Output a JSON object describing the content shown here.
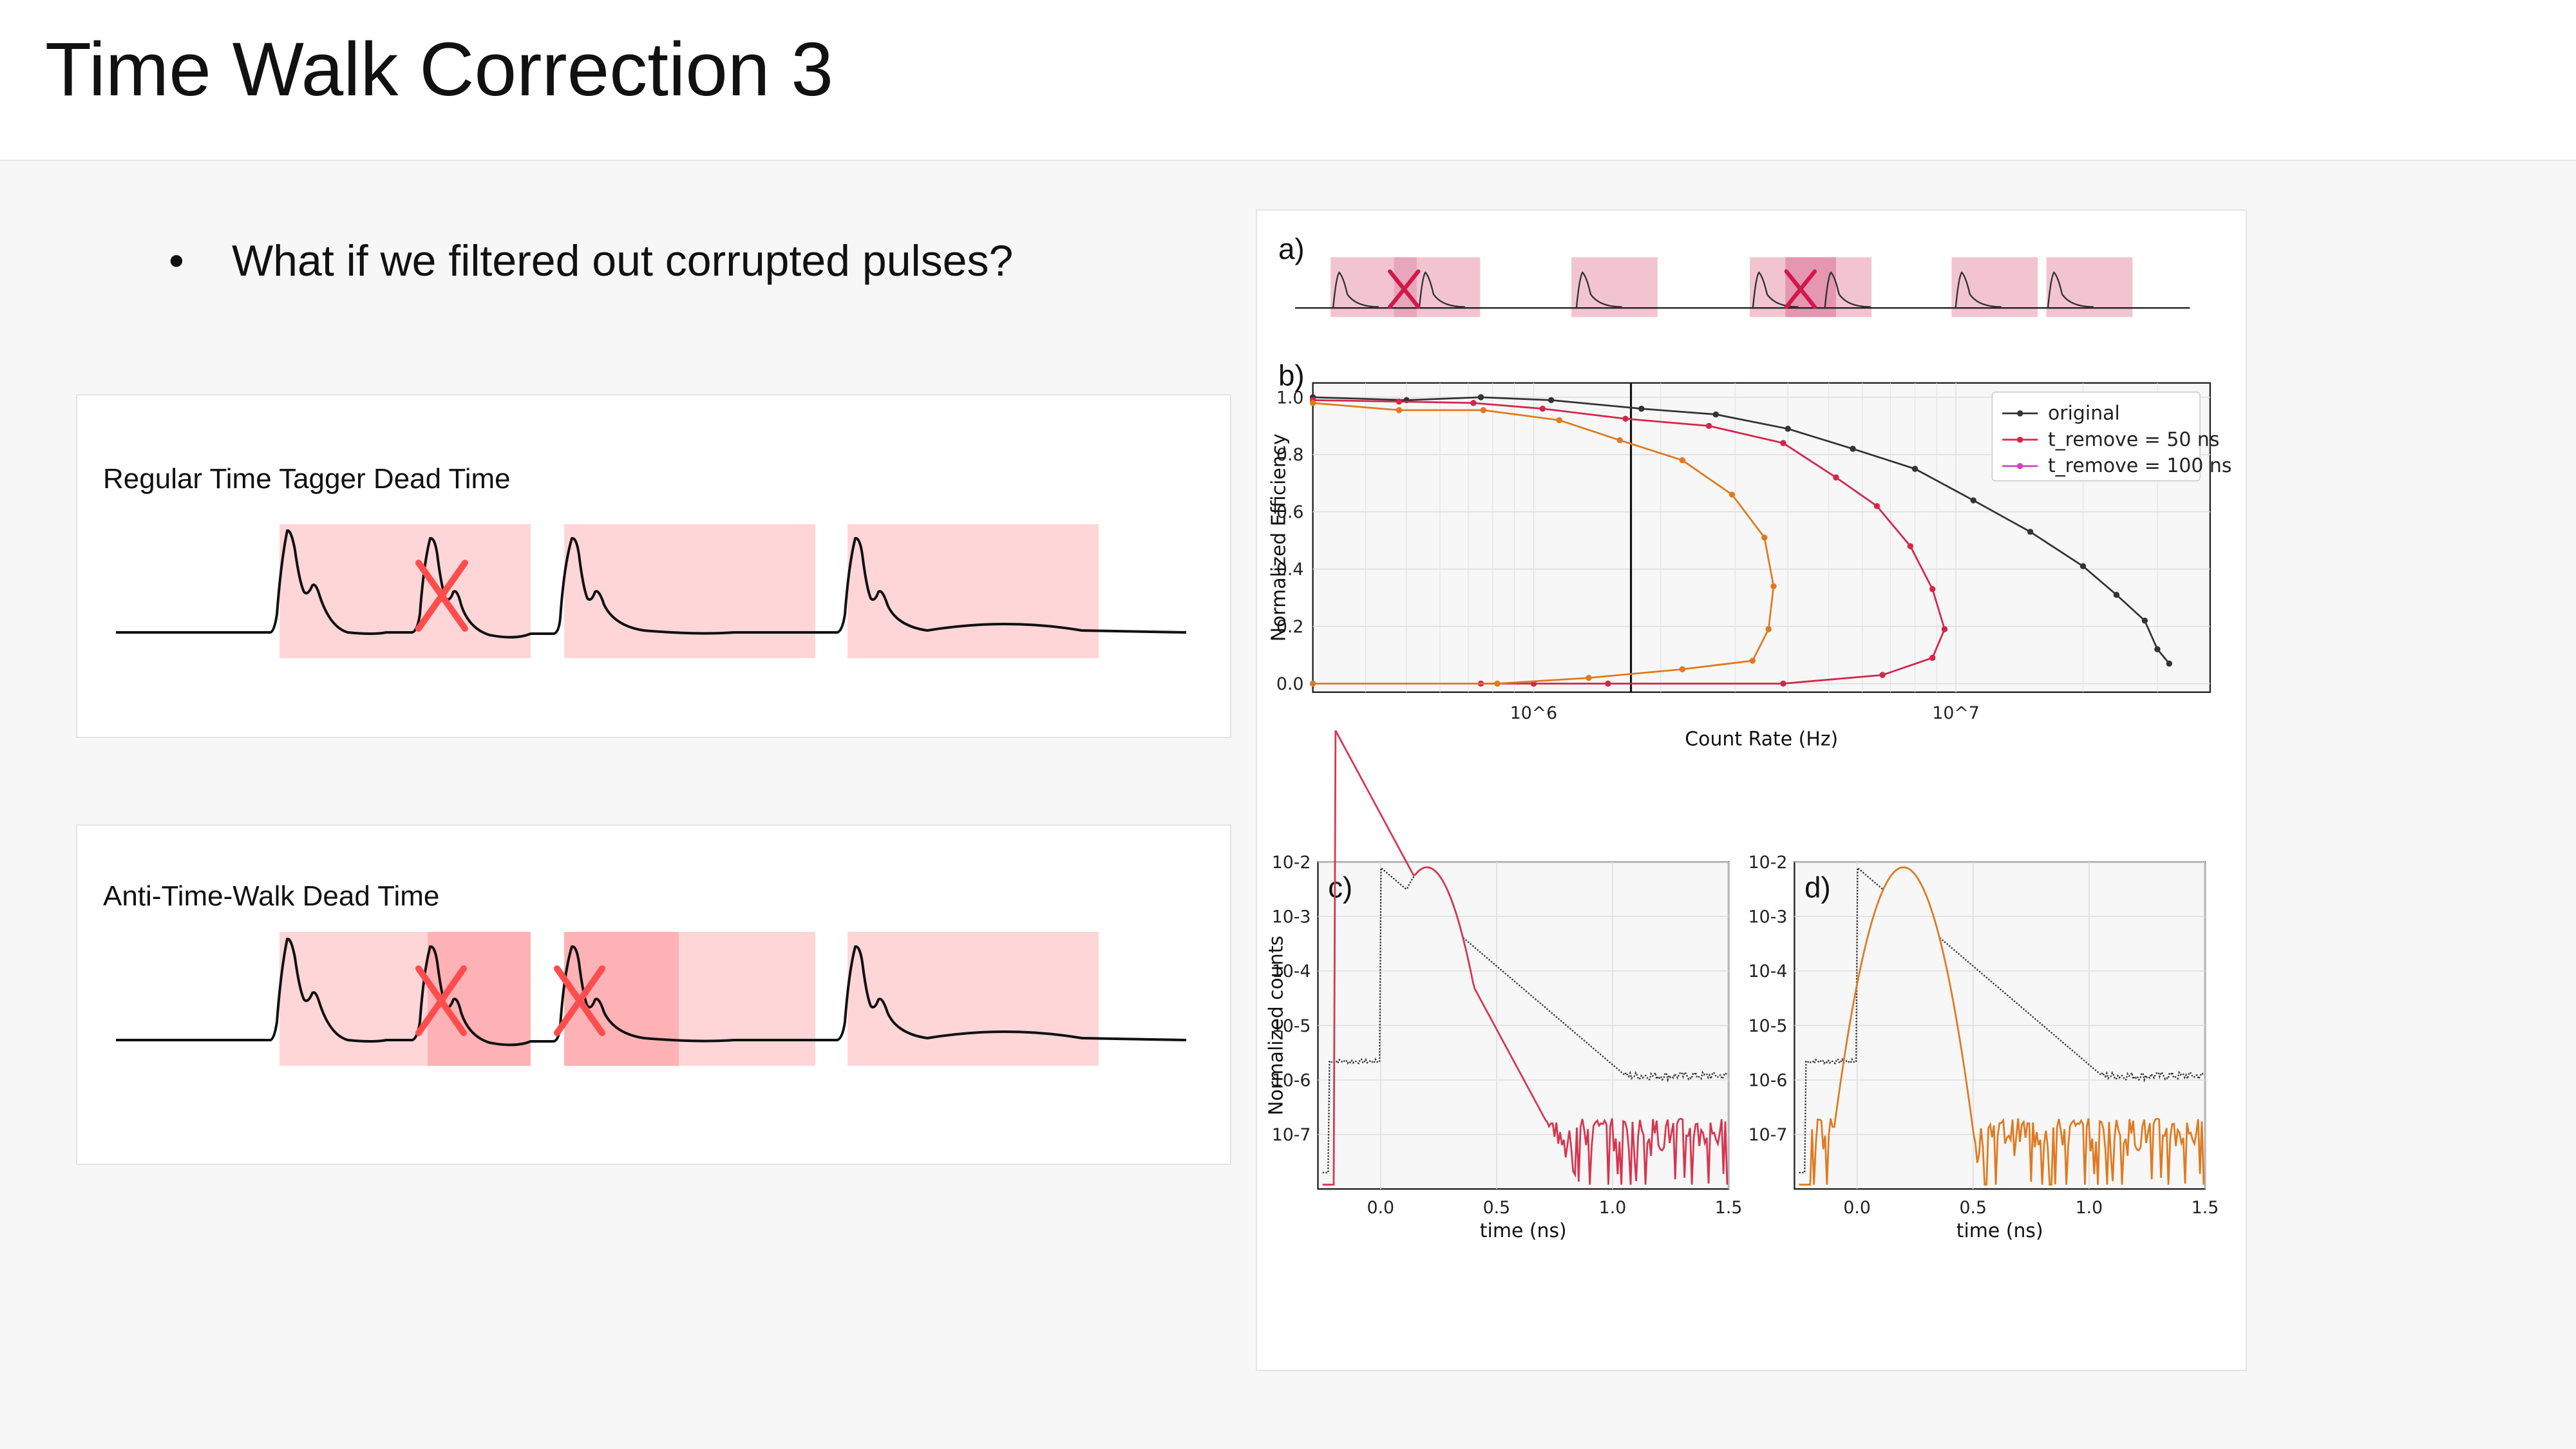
{
  "slide": {
    "title": "Time Walk Correction 3",
    "bullet_symbol": "•",
    "bullet_text": "What if we filtered out corrupted pulses?"
  },
  "cards": {
    "regular_label": "Regular Time Tagger Dead Time",
    "antiwalk_label": "Anti-Time-Walk Dead Time"
  },
  "figure": {
    "panel_a": "a)",
    "panel_b": "b)",
    "panel_c": "c)",
    "panel_d": "d)"
  },
  "chart_data": [
    {
      "type": "line",
      "panel": "b)",
      "xlabel": "Count Rate (Hz)",
      "ylabel": "Normalized Efficiency",
      "xscale": "log",
      "xlim": [
        300000,
        40000000
      ],
      "ylim": [
        -0.03,
        1.05
      ],
      "xticks": [
        "10^6",
        "10^7"
      ],
      "yticks": [
        "0.0",
        "0.2",
        "0.4",
        "0.6",
        "0.8",
        "1.0"
      ],
      "grid": true,
      "legend_position": "top-right",
      "vline_x": 1700000,
      "series": [
        {
          "name": "original",
          "color": "#333333",
          "x": [
            300000,
            500000,
            750000,
            1100000,
            1800000,
            2700000,
            4000000,
            5700000,
            8000000,
            11000000,
            15000000,
            20000000,
            24000000,
            28000000,
            30000000,
            32000000
          ],
          "y": [
            1.0,
            0.99,
            1.0,
            0.99,
            0.96,
            0.94,
            0.89,
            0.82,
            0.75,
            0.64,
            0.53,
            0.41,
            0.31,
            0.22,
            0.12,
            0.07
          ]
        },
        {
          "name": "t_remove = 50 ns",
          "color": "#d6254a",
          "x": [
            300000,
            480000,
            720000,
            1050000,
            1650000,
            2600000,
            3900000,
            5200000,
            6500000,
            7800000,
            8800000,
            9400000,
            8800000,
            6700000,
            3900000,
            1500000,
            1000000,
            750000
          ],
          "y": [
            0.99,
            0.985,
            0.98,
            0.96,
            0.925,
            0.9,
            0.84,
            0.72,
            0.62,
            0.48,
            0.33,
            0.19,
            0.09,
            0.03,
            0.0,
            0.0,
            0.0,
            0.0
          ]
        },
        {
          "name": "t_remove = 100 ns",
          "color": "#cc44cc",
          "x": [],
          "y": []
        },
        {
          "name": "",
          "color": "#e07a1f",
          "x": [
            300000,
            480000,
            760000,
            1150000,
            1600000,
            2250000,
            2950000,
            3520000,
            3700000,
            3600000,
            3300000,
            2250000,
            1350000,
            820000,
            300000
          ],
          "y": [
            0.98,
            0.955,
            0.955,
            0.92,
            0.85,
            0.78,
            0.66,
            0.51,
            0.34,
            0.19,
            0.08,
            0.05,
            0.02,
            0.0,
            0.0
          ]
        }
      ]
    },
    {
      "type": "line",
      "panel": "c)",
      "xlabel": "time (ns)",
      "ylabel": "Normalized counts",
      "yscale": "log",
      "xlim": [
        -0.27,
        1.5
      ],
      "ylim": [
        1e-08,
        0.01
      ],
      "xticks": [
        "0.0",
        "0.5",
        "1.0",
        "1.5"
      ],
      "yticks": [
        "10^-2",
        "10^-3",
        "10^-4",
        "10^-5",
        "10^-6",
        "10^-7"
      ],
      "grid": true,
      "series": [
        {
          "name": "",
          "color": "#333333",
          "style": "dotted",
          "note": "original"
        },
        {
          "name": "",
          "color": "#d6354f",
          "note": "filtered"
        }
      ]
    },
    {
      "type": "line",
      "panel": "d)",
      "xlabel": "time (ns)",
      "ylabel": "",
      "yscale": "log",
      "xlim": [
        -0.27,
        1.5
      ],
      "ylim": [
        1e-08,
        0.01
      ],
      "xticks": [
        "0.0",
        "0.5",
        "1.0",
        "1.5"
      ],
      "yticks": [
        "10^-2",
        "10^-3",
        "10^-4",
        "10^-5",
        "10^-6",
        "10^-7"
      ],
      "grid": true,
      "series": [
        {
          "name": "",
          "color": "#333333",
          "style": "dotted",
          "note": "original"
        },
        {
          "name": "",
          "color": "#e07a1f",
          "note": "filtered"
        }
      ]
    }
  ],
  "colors": {
    "deadtime_fill": "#ffd6d8",
    "deadtime_dark": "#ffaaae",
    "cross": "#ff4d4d",
    "accent_pink": "#f2c4d2",
    "cross_dark": "#d3174a"
  }
}
